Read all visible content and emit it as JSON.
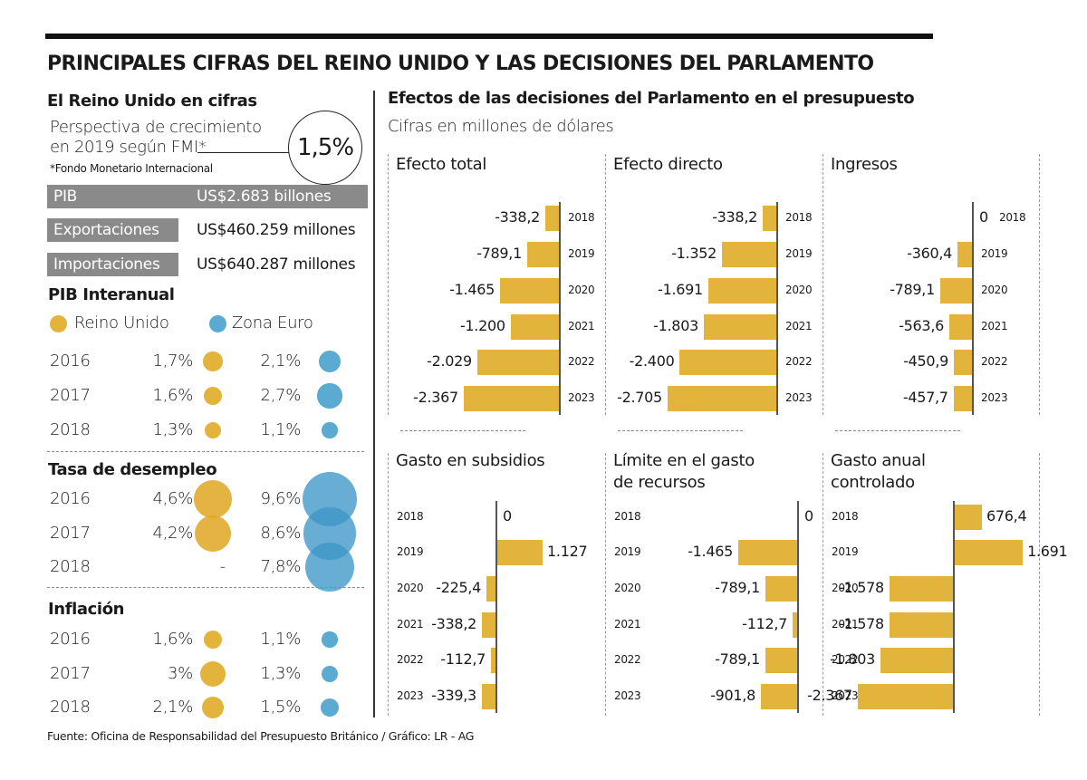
{
  "title": "PRINCIPALES CIFRAS DEL REINO UNIDO Y LAS DECISIONES DEL PARLAMENTO",
  "colors": {
    "uk": "#e3b43c",
    "euro": "#5aaad2",
    "bar": "#e3b43c",
    "statbox": "#8a8a8a"
  },
  "left": {
    "heading": "El Reino Unido en cifras",
    "growth": {
      "line1": "Perspectiva de crecimiento",
      "line2": "en 2019 según FMI*",
      "value": "1,5%",
      "footnote": "*Fondo Monetario Internacional"
    },
    "stats": [
      {
        "label": "PIB",
        "value": "US$2.683 billones"
      },
      {
        "label": "Exportaciones",
        "value": "US$460.259 millones"
      },
      {
        "label": "Importaciones",
        "value": "US$640.287 millones"
      }
    ],
    "legend": {
      "uk": "Reino Unido",
      "euro": "Zona Euro"
    },
    "pib": {
      "heading": "PIB Interanual",
      "rows": [
        {
          "year": "2016",
          "uk": "1,7%",
          "euro": "2,1%",
          "uk_v": 1.7,
          "euro_v": 2.1
        },
        {
          "year": "2017",
          "uk": "1,6%",
          "euro": "2,7%",
          "uk_v": 1.6,
          "euro_v": 2.7
        },
        {
          "year": "2018",
          "uk": "1,3%",
          "euro": "1,1%",
          "uk_v": 1.3,
          "euro_v": 1.1
        }
      ]
    },
    "desempleo": {
      "heading": "Tasa de desempleo",
      "rows": [
        {
          "year": "2016",
          "uk": "4,6%",
          "euro": "9,6%",
          "uk_v": 4.6,
          "euro_v": 9.6
        },
        {
          "year": "2017",
          "uk": "4,2%",
          "euro": "8,6%",
          "uk_v": 4.2,
          "euro_v": 8.6
        },
        {
          "year": "2018",
          "uk": "-",
          "euro": "7,8%",
          "uk_v": null,
          "euro_v": 7.8
        }
      ]
    },
    "inflacion": {
      "heading": "Inflación",
      "rows": [
        {
          "year": "2016",
          "uk": "1,6%",
          "euro": "1,1%",
          "uk_v": 1.6,
          "euro_v": 1.1
        },
        {
          "year": "2017",
          "uk": "3%",
          "euro": "1,3%",
          "uk_v": 3.0,
          "euro_v": 1.3
        },
        {
          "year": "2018",
          "uk": "2,1%",
          "euro": "1,5%",
          "uk_v": 2.1,
          "euro_v": 1.5
        }
      ]
    }
  },
  "right": {
    "heading": "Efectos de las decisiones del Parlamento en el presupuesto",
    "subheading": "Cifras en millones de dólares"
  },
  "source": "Fuente: Oficina de Responsabilidad del Presupuesto Británico / Gráfico: LR - AG",
  "chart_data": [
    {
      "type": "bar",
      "orientation": "horizontal",
      "title": "Efecto total",
      "categories": [
        "2018",
        "2019",
        "2020",
        "2021",
        "2022",
        "2023"
      ],
      "values": [
        -338.2,
        -789.1,
        -1465,
        -1200,
        -2029,
        -2367
      ],
      "labels": [
        "-338,2",
        "-789,1",
        "-1.465",
        "-1.200",
        "-2.029",
        "-2.367"
      ],
      "unit": "millones de dólares"
    },
    {
      "type": "bar",
      "orientation": "horizontal",
      "title": "Efecto directo",
      "categories": [
        "2018",
        "2019",
        "2020",
        "2021",
        "2022",
        "2023"
      ],
      "values": [
        -338.2,
        -1352,
        -1691,
        -1803,
        -2400,
        -2705
      ],
      "labels": [
        "-338,2",
        "-1.352",
        "-1.691",
        "-1.803",
        "-2.400",
        "-2.705"
      ],
      "unit": "millones de dólares"
    },
    {
      "type": "bar",
      "orientation": "horizontal",
      "title": "Ingresos",
      "categories": [
        "2018",
        "2019",
        "2020",
        "2021",
        "2022",
        "2023"
      ],
      "values": [
        0,
        -360.4,
        -789.1,
        -563.6,
        -450.9,
        -457.7
      ],
      "labels": [
        "0",
        "-360,4",
        "-789,1",
        "-563,6",
        "-450,9",
        "-457,7"
      ],
      "unit": "millones de dólares"
    },
    {
      "type": "bar",
      "orientation": "horizontal",
      "title": "Gasto en subsidios",
      "categories": [
        "2018",
        "2019",
        "2020",
        "2021",
        "2022",
        "2023"
      ],
      "values": [
        0,
        1127,
        -225.4,
        -338.2,
        -112.7,
        -339.3
      ],
      "labels": [
        "0",
        "1.127",
        "-225,4",
        "-338,2",
        "-112,7",
        "-339,3"
      ],
      "unit": "millones de dólares"
    },
    {
      "type": "bar",
      "orientation": "horizontal",
      "title": "Límite en el gasto de recursos",
      "title_lines": [
        "Límite en el gasto",
        "de recursos"
      ],
      "categories": [
        "2018",
        "2019",
        "2020",
        "2021",
        "2022",
        "2023"
      ],
      "values": [
        0,
        -1465,
        -789.1,
        -112.7,
        -789.1,
        -901.8
      ],
      "labels": [
        "0",
        "-1.465",
        "-789,1",
        "-112,7",
        "-789,1",
        "-901,8"
      ],
      "unit": "millones de dólares"
    },
    {
      "type": "bar",
      "orientation": "horizontal",
      "title": "Gasto anual controlado",
      "title_lines": [
        "Gasto anual",
        "controlado"
      ],
      "categories": [
        "2018",
        "2019",
        "2020",
        "2021",
        "2022",
        "2023"
      ],
      "values": [
        676.4,
        1691,
        -1578,
        -1578,
        -1803,
        -2367
      ],
      "labels": [
        "676,4",
        "1.691",
        "-1.578",
        "-1.578",
        "-1.803",
        "-2.367"
      ],
      "unit": "millones de dólares"
    }
  ]
}
